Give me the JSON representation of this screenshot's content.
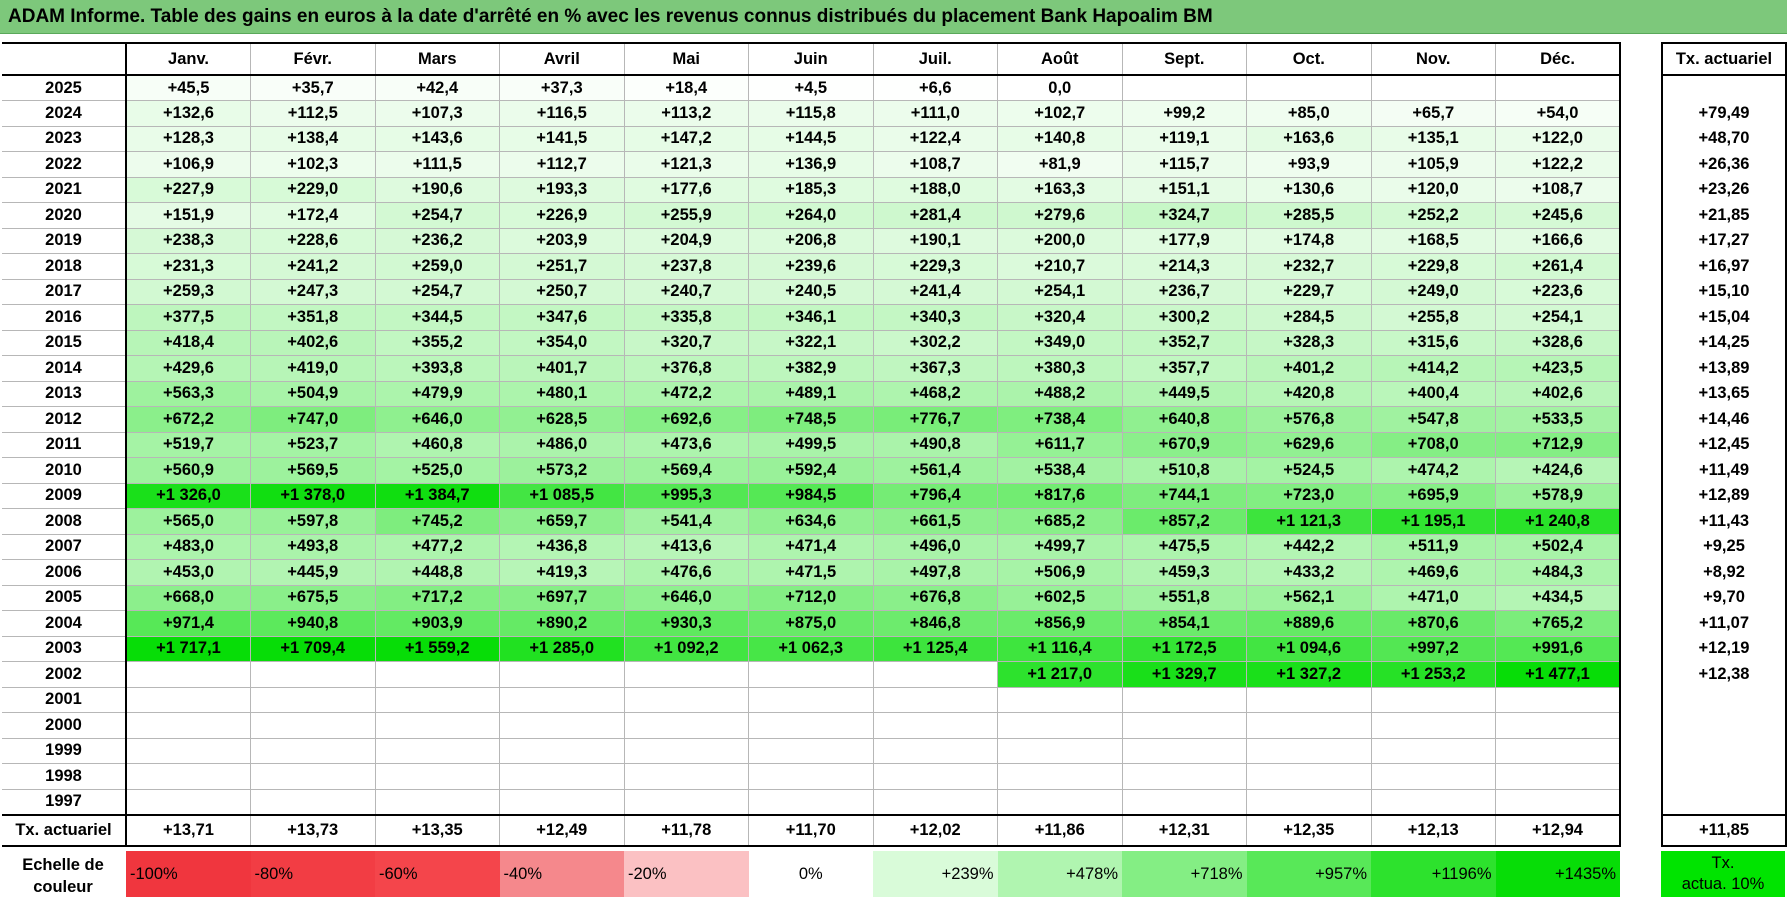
{
  "title": "ADAM Informe. Table des gains en euros à la date d'arrêté en % avec les revenus connus distribués du placement Bank Hapoalim BM",
  "months": [
    "Janv.",
    "Févr.",
    "Mars",
    "Avril",
    "Mai",
    "Juin",
    "Juil.",
    "Août",
    "Sept.",
    "Oct.",
    "Nov.",
    "Déc."
  ],
  "tx_header": "Tx. actuariel",
  "rows": [
    {
      "year": "2025",
      "values": [
        "+45,5",
        "+35,7",
        "+42,4",
        "+37,3",
        "+18,4",
        "+4,5",
        "+6,6",
        "0,0",
        "",
        "",
        "",
        ""
      ],
      "tx": ""
    },
    {
      "year": "2024",
      "values": [
        "+132,6",
        "+112,5",
        "+107,3",
        "+116,5",
        "+113,2",
        "+115,8",
        "+111,0",
        "+102,7",
        "+99,2",
        "+85,0",
        "+65,7",
        "+54,0"
      ],
      "tx": "+79,49"
    },
    {
      "year": "2023",
      "values": [
        "+128,3",
        "+138,4",
        "+143,6",
        "+141,5",
        "+147,2",
        "+144,5",
        "+122,4",
        "+140,8",
        "+119,1",
        "+163,6",
        "+135,1",
        "+122,0"
      ],
      "tx": "+48,70"
    },
    {
      "year": "2022",
      "values": [
        "+106,9",
        "+102,3",
        "+111,5",
        "+112,7",
        "+121,3",
        "+136,9",
        "+108,7",
        "+81,9",
        "+115,7",
        "+93,9",
        "+105,9",
        "+122,2"
      ],
      "tx": "+26,36"
    },
    {
      "year": "2021",
      "values": [
        "+227,9",
        "+229,0",
        "+190,6",
        "+193,3",
        "+177,6",
        "+185,3",
        "+188,0",
        "+163,3",
        "+151,1",
        "+130,6",
        "+120,0",
        "+108,7"
      ],
      "tx": "+23,26"
    },
    {
      "year": "2020",
      "values": [
        "+151,9",
        "+172,4",
        "+254,7",
        "+226,9",
        "+255,9",
        "+264,0",
        "+281,4",
        "+279,6",
        "+324,7",
        "+285,5",
        "+252,2",
        "+245,6"
      ],
      "tx": "+21,85"
    },
    {
      "year": "2019",
      "values": [
        "+238,3",
        "+228,6",
        "+236,2",
        "+203,9",
        "+204,9",
        "+206,8",
        "+190,1",
        "+200,0",
        "+177,9",
        "+174,8",
        "+168,5",
        "+166,6"
      ],
      "tx": "+17,27"
    },
    {
      "year": "2018",
      "values": [
        "+231,3",
        "+241,2",
        "+259,0",
        "+251,7",
        "+237,8",
        "+239,6",
        "+229,3",
        "+210,7",
        "+214,3",
        "+232,7",
        "+229,8",
        "+261,4"
      ],
      "tx": "+16,97"
    },
    {
      "year": "2017",
      "values": [
        "+259,3",
        "+247,3",
        "+254,7",
        "+250,7",
        "+240,7",
        "+240,5",
        "+241,4",
        "+254,1",
        "+236,7",
        "+229,7",
        "+249,0",
        "+223,6"
      ],
      "tx": "+15,10"
    },
    {
      "year": "2016",
      "values": [
        "+377,5",
        "+351,8",
        "+344,5",
        "+347,6",
        "+335,8",
        "+346,1",
        "+340,3",
        "+320,4",
        "+300,2",
        "+284,5",
        "+255,8",
        "+254,1"
      ],
      "tx": "+15,04"
    },
    {
      "year": "2015",
      "values": [
        "+418,4",
        "+402,6",
        "+355,2",
        "+354,0",
        "+320,7",
        "+322,1",
        "+302,2",
        "+349,0",
        "+352,7",
        "+328,3",
        "+315,6",
        "+328,6"
      ],
      "tx": "+14,25"
    },
    {
      "year": "2014",
      "values": [
        "+429,6",
        "+419,0",
        "+393,8",
        "+401,7",
        "+376,8",
        "+382,9",
        "+367,3",
        "+380,3",
        "+357,7",
        "+401,2",
        "+414,2",
        "+423,5"
      ],
      "tx": "+13,89"
    },
    {
      "year": "2013",
      "values": [
        "+563,3",
        "+504,9",
        "+479,9",
        "+480,1",
        "+472,2",
        "+489,1",
        "+468,2",
        "+488,2",
        "+449,5",
        "+420,8",
        "+400,4",
        "+402,6"
      ],
      "tx": "+13,65"
    },
    {
      "year": "2012",
      "values": [
        "+672,2",
        "+747,0",
        "+646,0",
        "+628,5",
        "+692,6",
        "+748,5",
        "+776,7",
        "+738,4",
        "+640,8",
        "+576,8",
        "+547,8",
        "+533,5"
      ],
      "tx": "+14,46"
    },
    {
      "year": "2011",
      "values": [
        "+519,7",
        "+523,7",
        "+460,8",
        "+486,0",
        "+473,6",
        "+499,5",
        "+490,8",
        "+611,7",
        "+670,9",
        "+629,6",
        "+708,0",
        "+712,9"
      ],
      "tx": "+12,45"
    },
    {
      "year": "2010",
      "values": [
        "+560,9",
        "+569,5",
        "+525,0",
        "+573,2",
        "+569,4",
        "+592,4",
        "+561,4",
        "+538,4",
        "+510,8",
        "+524,5",
        "+474,2",
        "+424,6"
      ],
      "tx": "+11,49"
    },
    {
      "year": "2009",
      "values": [
        "+1 326,0",
        "+1 378,0",
        "+1 384,7",
        "+1 085,5",
        "+995,3",
        "+984,5",
        "+796,4",
        "+817,6",
        "+744,1",
        "+723,0",
        "+695,9",
        "+578,9"
      ],
      "tx": "+12,89"
    },
    {
      "year": "2008",
      "values": [
        "+565,0",
        "+597,8",
        "+745,2",
        "+659,7",
        "+541,4",
        "+634,6",
        "+661,5",
        "+685,2",
        "+857,2",
        "+1 121,3",
        "+1 195,1",
        "+1 240,8"
      ],
      "tx": "+11,43"
    },
    {
      "year": "2007",
      "values": [
        "+483,0",
        "+493,8",
        "+477,2",
        "+436,8",
        "+413,6",
        "+471,4",
        "+496,0",
        "+499,7",
        "+475,5",
        "+442,2",
        "+511,9",
        "+502,4"
      ],
      "tx": "+9,25"
    },
    {
      "year": "2006",
      "values": [
        "+453,0",
        "+445,9",
        "+448,8",
        "+419,3",
        "+476,6",
        "+471,5",
        "+497,8",
        "+506,9",
        "+459,3",
        "+433,2",
        "+469,6",
        "+484,3"
      ],
      "tx": "+8,92"
    },
    {
      "year": "2005",
      "values": [
        "+668,0",
        "+675,5",
        "+717,2",
        "+697,7",
        "+646,0",
        "+712,0",
        "+676,8",
        "+602,5",
        "+551,8",
        "+562,1",
        "+471,0",
        "+434,5"
      ],
      "tx": "+9,70"
    },
    {
      "year": "2004",
      "values": [
        "+971,4",
        "+940,8",
        "+903,9",
        "+890,2",
        "+930,3",
        "+875,0",
        "+846,8",
        "+856,9",
        "+854,1",
        "+889,6",
        "+870,6",
        "+765,2"
      ],
      "tx": "+11,07"
    },
    {
      "year": "2003",
      "values": [
        "+1 717,1",
        "+1 709,4",
        "+1 559,2",
        "+1 285,0",
        "+1 092,2",
        "+1 062,3",
        "+1 125,4",
        "+1 116,4",
        "+1 172,5",
        "+1 094,6",
        "+997,2",
        "+991,6"
      ],
      "tx": "+12,19"
    },
    {
      "year": "2002",
      "values": [
        "",
        "",
        "",
        "",
        "",
        "",
        "",
        "+1 217,0",
        "+1 329,7",
        "+1 327,2",
        "+1 253,2",
        "+1 477,1"
      ],
      "tx": "+12,38"
    },
    {
      "year": "2001",
      "values": [
        "",
        "",
        "",
        "",
        "",
        "",
        "",
        "",
        "",
        "",
        "",
        ""
      ],
      "tx": ""
    },
    {
      "year": "2000",
      "values": [
        "",
        "",
        "",
        "",
        "",
        "",
        "",
        "",
        "",
        "",
        "",
        ""
      ],
      "tx": ""
    },
    {
      "year": "1999",
      "values": [
        "",
        "",
        "",
        "",
        "",
        "",
        "",
        "",
        "",
        "",
        "",
        ""
      ],
      "tx": ""
    },
    {
      "year": "1998",
      "values": [
        "",
        "",
        "",
        "",
        "",
        "",
        "",
        "",
        "",
        "",
        "",
        ""
      ],
      "tx": ""
    },
    {
      "year": "1997",
      "values": [
        "",
        "",
        "",
        "",
        "",
        "",
        "",
        "",
        "",
        "",
        "",
        ""
      ],
      "tx": ""
    }
  ],
  "footer": {
    "label": "Tx. actuariel",
    "values": [
      "+13,71",
      "+13,73",
      "+13,35",
      "+12,49",
      "+11,78",
      "+11,70",
      "+12,02",
      "+11,86",
      "+12,31",
      "+12,35",
      "+12,13",
      "+12,94"
    ],
    "tx": "+11,85"
  },
  "scale": {
    "label_line1": "Echelle de",
    "label_line2": "couleur",
    "items": [
      {
        "text": "-100%",
        "color": "#f0363e"
      },
      {
        "text": "-80%",
        "color": "#f23d44"
      },
      {
        "text": "-60%",
        "color": "#f4454b"
      },
      {
        "text": "-40%",
        "color": "#f5888c"
      },
      {
        "text": "-20%",
        "color": "#fbc1c3"
      },
      {
        "text": "0%",
        "color": "#ffffff"
      },
      {
        "text": "+239%",
        "color": "#d9fbd9"
      },
      {
        "text": "+478%",
        "color": "#b0f5b0"
      },
      {
        "text": "+718%",
        "color": "#84ee84"
      },
      {
        "text": "+957%",
        "color": "#58e858"
      },
      {
        "text": "+1196%",
        "color": "#2de22d"
      },
      {
        "text": "+1435%",
        "color": "#07dd07"
      }
    ],
    "actua_line1": "Tx.",
    "actua_line2": "actua. 10%",
    "actua_color": "#00e400"
  },
  "colors": {
    "title_bar": "#7dc87b",
    "gain_max": "#07dd07"
  }
}
